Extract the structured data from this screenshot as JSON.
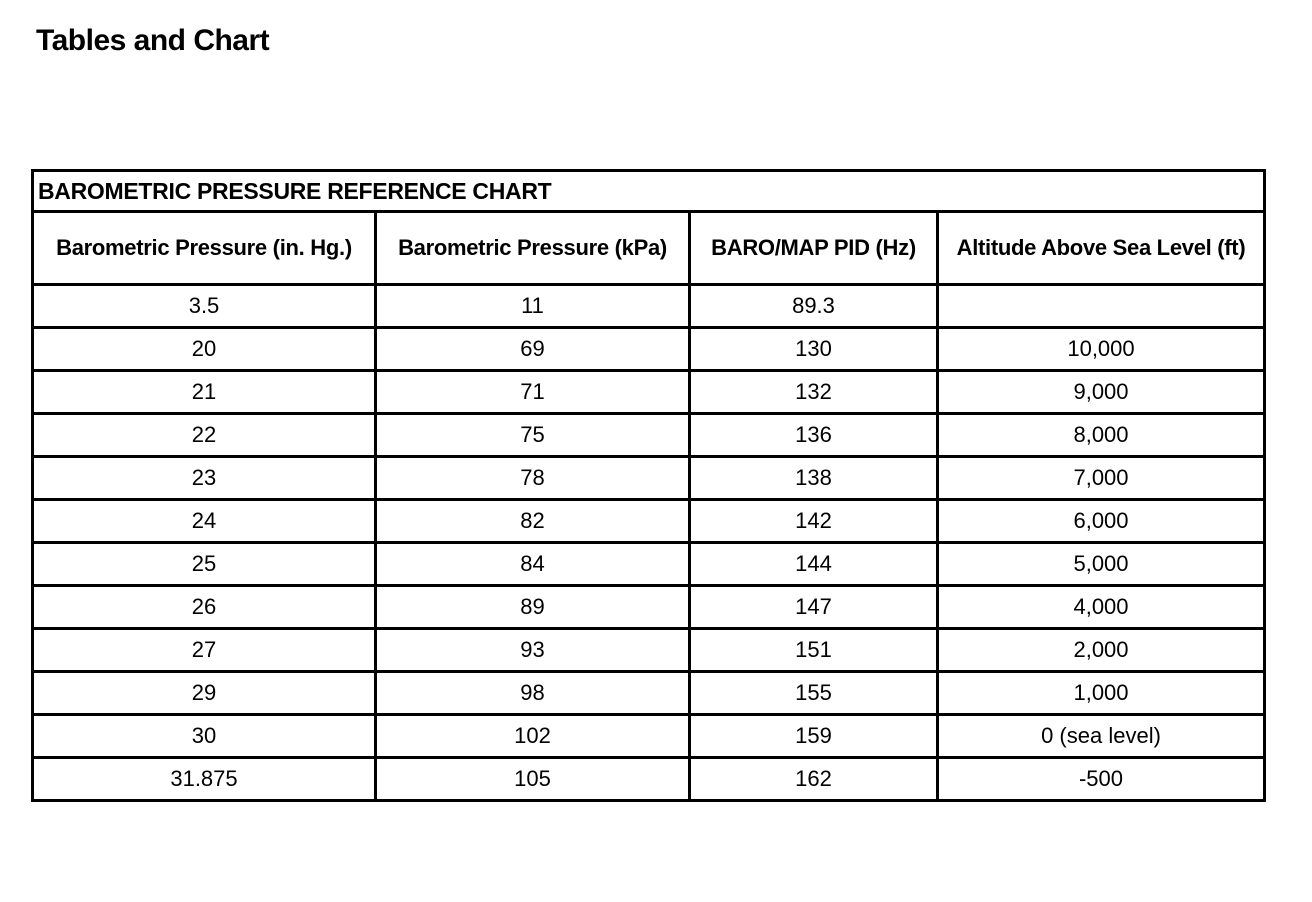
{
  "page": {
    "title": "Tables and Chart"
  },
  "table": {
    "caption": "BAROMETRIC PRESSURE REFERENCE CHART",
    "headers": [
      "Barometric Pressure (in. Hg.)",
      "Barometric Pressure (kPa)",
      "BARO/MAP PID (Hz)",
      "Altitude Above Sea Level (ft)"
    ],
    "rows": [
      [
        "3.5",
        "11",
        "89.3",
        ""
      ],
      [
        "20",
        "69",
        "130",
        "10,000"
      ],
      [
        "21",
        "71",
        "132",
        "9,000"
      ],
      [
        "22",
        "75",
        "136",
        "8,000"
      ],
      [
        "23",
        "78",
        "138",
        "7,000"
      ],
      [
        "24",
        "82",
        "142",
        "6,000"
      ],
      [
        "25",
        "84",
        "144",
        "5,000"
      ],
      [
        "26",
        "89",
        "147",
        "4,000"
      ],
      [
        "27",
        "93",
        "151",
        "2,000"
      ],
      [
        "29",
        "98",
        "155",
        "1,000"
      ],
      [
        "30",
        "102",
        "159",
        "0 (sea level)"
      ],
      [
        "31.875",
        "105",
        "162",
        "-500"
      ]
    ]
  }
}
